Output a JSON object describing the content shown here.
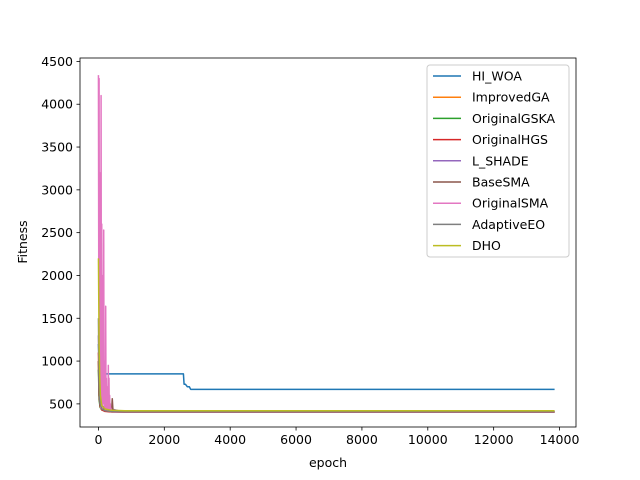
{
  "chart_data": {
    "type": "line",
    "title": "",
    "xlabel": "epoch",
    "ylabel": "Fitness",
    "xlim": [
      -560,
      14500
    ],
    "ylim": [
      230,
      4540
    ],
    "xticks": [
      0,
      2000,
      4000,
      6000,
      8000,
      10000,
      12000,
      14000
    ],
    "yticks": [
      500,
      1000,
      1500,
      2000,
      2500,
      3000,
      3500,
      4000,
      4500
    ],
    "xtick_labels": [
      "0",
      "2000",
      "4000",
      "6000",
      "8000",
      "10000",
      "12000",
      "14000"
    ],
    "ytick_labels": [
      "500",
      "1000",
      "1500",
      "2000",
      "2500",
      "3000",
      "3500",
      "4000",
      "4500"
    ],
    "grid": false,
    "legend_position": "top-right",
    "series": [
      {
        "name": "HI_WOA",
        "color": "#1f77b4",
        "x": [
          0,
          20,
          50,
          80,
          100,
          150,
          200,
          250,
          300,
          2580,
          2600,
          2640,
          2680,
          2700,
          2760,
          2800,
          13850
        ],
        "y": [
          1200,
          900,
          870,
          860,
          855,
          852,
          850,
          850,
          850,
          850,
          730,
          730,
          710,
          700,
          700,
          670,
          670
        ]
      },
      {
        "name": "ImprovedGA",
        "color": "#ff7f0e",
        "x": [
          0,
          20,
          50,
          100,
          200,
          400,
          800,
          13850
        ],
        "y": [
          1000,
          600,
          480,
          440,
          420,
          410,
          405,
          405
        ]
      },
      {
        "name": "OriginalGSKA",
        "color": "#2ca02c",
        "x": [
          0,
          20,
          50,
          100,
          200,
          400,
          800,
          13850
        ],
        "y": [
          900,
          550,
          460,
          430,
          415,
          410,
          408,
          408
        ]
      },
      {
        "name": "OriginalHGS",
        "color": "#d62728",
        "x": [
          0,
          20,
          50,
          100,
          200,
          400,
          800,
          13850
        ],
        "y": [
          1100,
          600,
          470,
          430,
          412,
          405,
          403,
          403
        ]
      },
      {
        "name": "L_SHADE",
        "color": "#9467bd",
        "x": [
          0,
          20,
          50,
          100,
          200,
          300,
          400,
          500,
          600,
          800,
          13850
        ],
        "y": [
          1300,
          800,
          550,
          480,
          460,
          450,
          440,
          430,
          420,
          410,
          410
        ]
      },
      {
        "name": "BaseSMA",
        "color": "#8c564b",
        "x": [
          0,
          20,
          50,
          100,
          200,
          300,
          400,
          420,
          440,
          500,
          600,
          800,
          13850
        ],
        "y": [
          1000,
          600,
          480,
          450,
          440,
          430,
          430,
          560,
          430,
          420,
          412,
          408,
          408
        ]
      },
      {
        "name": "OriginalSMA",
        "color": "#e377c2",
        "x": [
          0,
          10,
          20,
          30,
          40,
          50,
          60,
          70,
          80,
          90,
          100,
          110,
          120,
          130,
          140,
          150,
          160,
          170,
          180,
          190,
          200,
          210,
          220,
          230,
          240,
          250,
          260,
          270,
          280,
          290,
          300,
          310,
          320,
          330,
          340,
          350,
          360,
          370,
          380,
          390,
          400,
          420,
          440,
          460,
          480,
          500,
          550,
          600,
          700,
          800,
          13850
        ],
        "y": [
          4340,
          1800,
          4300,
          900,
          3200,
          600,
          1500,
          450,
          4100,
          700,
          2600,
          500,
          1800,
          450,
          2000,
          800,
          2530,
          500,
          1000,
          450,
          600,
          420,
          1640,
          450,
          800,
          430,
          600,
          420,
          700,
          420,
          950,
          430,
          800,
          420,
          600,
          420,
          500,
          410,
          450,
          410,
          430,
          420,
          410,
          410,
          408,
          405,
          405,
          405,
          405,
          405,
          405
        ]
      },
      {
        "name": "AdaptiveEO",
        "color": "#7f7f7f",
        "x": [
          0,
          20,
          50,
          100,
          200,
          400,
          800,
          13850
        ],
        "y": [
          1500,
          700,
          500,
          440,
          420,
          410,
          406,
          406
        ]
      },
      {
        "name": "DHO",
        "color": "#bcbd22",
        "x": [
          0,
          10,
          20,
          40,
          60,
          100,
          200,
          400,
          800,
          13850
        ],
        "y": [
          2200,
          1700,
          1200,
          800,
          600,
          480,
          440,
          425,
          420,
          420
        ]
      }
    ]
  }
}
